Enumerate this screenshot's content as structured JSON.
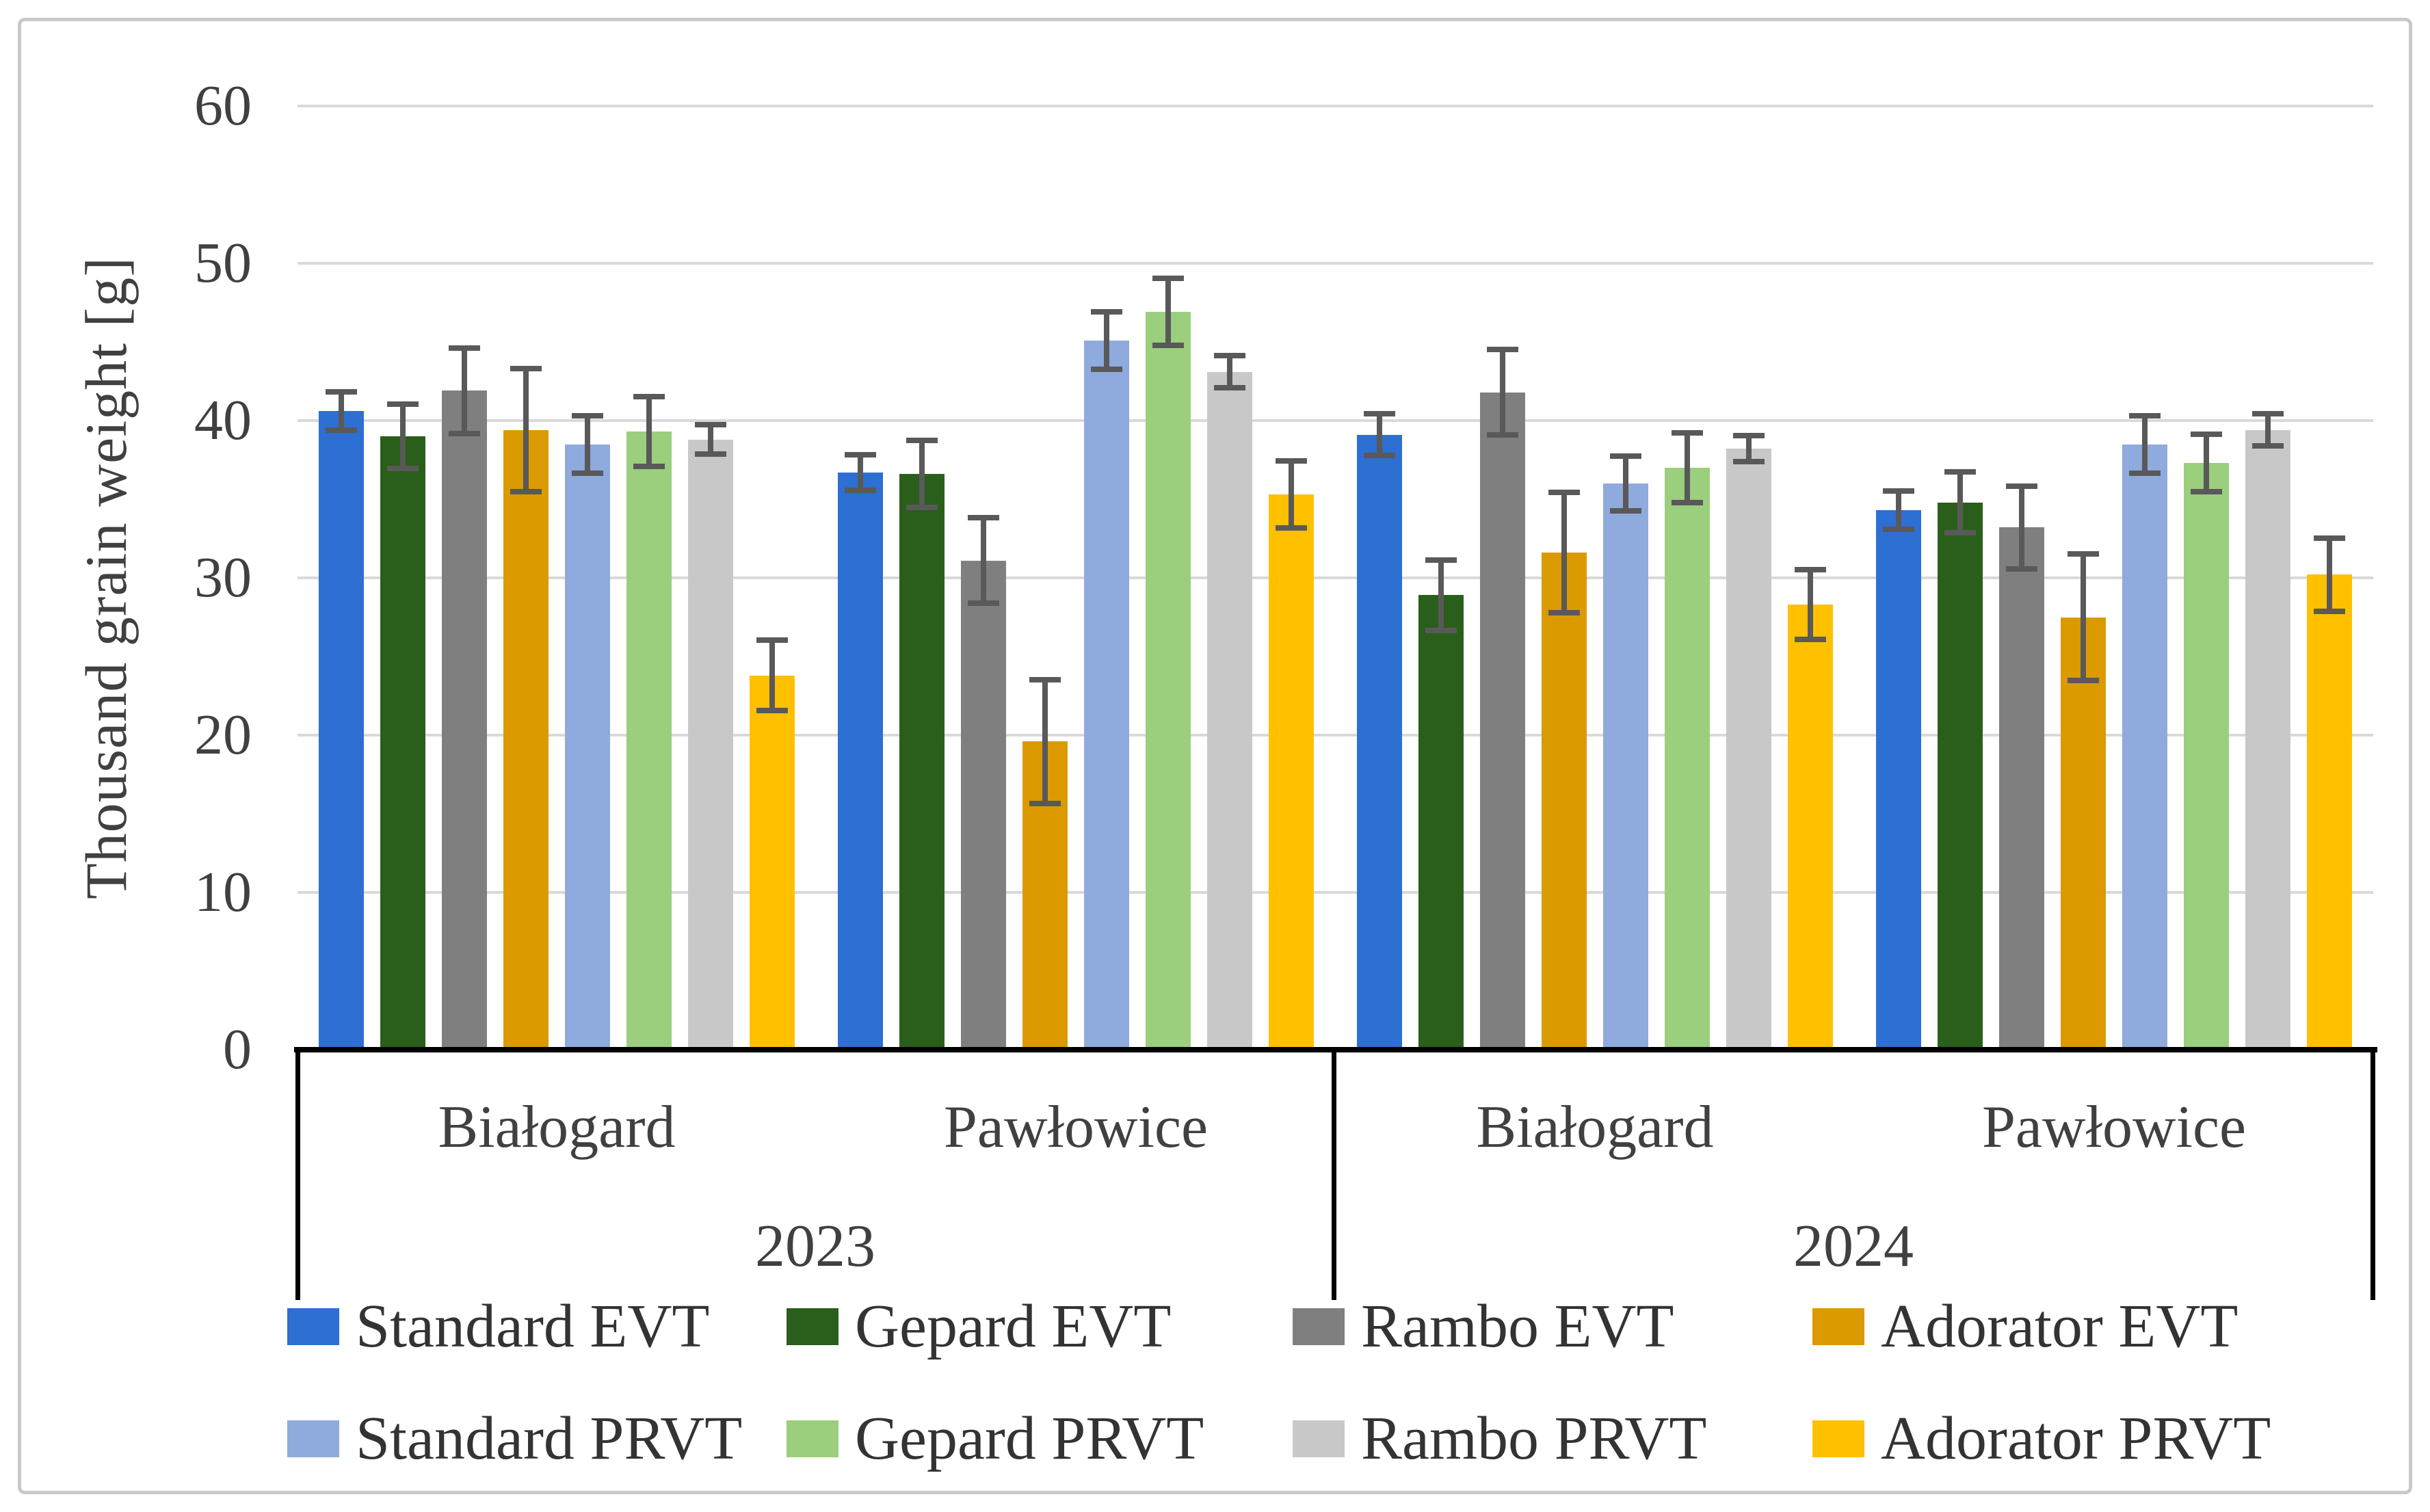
{
  "figure": {
    "background_color": "#ffffff",
    "border_color": "#c9c9c9",
    "text_color": "#404040",
    "gridline_color": "#d9d9d9"
  },
  "chart_data": {
    "type": "bar",
    "title": "",
    "ylabel": "Thousand grain weight [g]",
    "xlabel": "",
    "ylim": [
      0,
      60
    ],
    "yticks": [
      0,
      10,
      20,
      30,
      40,
      50,
      60
    ],
    "grid": true,
    "legend_position": "bottom, two rows",
    "error_bars": true,
    "error_bar_color": "#595959",
    "categories": [
      {
        "location": "Białogard",
        "year": "2023"
      },
      {
        "location": "Pawłowice",
        "year": "2023"
      },
      {
        "location": "Białogard",
        "year": "2024"
      },
      {
        "location": "Pawłowice",
        "year": "2024"
      }
    ],
    "year_groups": [
      "2023",
      "2024"
    ],
    "series": [
      {
        "name": "Standard EVT",
        "color": "#2d6fd2",
        "values": [
          40.6,
          36.7,
          39.1,
          34.3
        ],
        "errors": [
          1.4,
          1.3,
          1.5,
          1.4
        ]
      },
      {
        "name": "Gepard EVT",
        "color": "#2a5e1b",
        "values": [
          39.0,
          36.6,
          28.9,
          34.8
        ],
        "errors": [
          2.2,
          2.3,
          2.4,
          2.1
        ]
      },
      {
        "name": "Rambo EVT",
        "color": "#7f7f7f",
        "values": [
          41.9,
          31.1,
          41.8,
          33.2
        ],
        "errors": [
          2.9,
          2.9,
          2.9,
          2.8
        ]
      },
      {
        "name": "Adorator EVT",
        "color": "#da9a00",
        "values": [
          39.4,
          19.6,
          31.6,
          27.5
        ],
        "errors": [
          4.1,
          4.1,
          4.0,
          4.2
        ]
      },
      {
        "name": "Standard PRVT",
        "color": "#8faadc",
        "values": [
          38.5,
          45.1,
          36.0,
          38.5
        ],
        "errors": [
          2.0,
          2.0,
          1.9,
          2.0
        ]
      },
      {
        "name": "Gepard PRVT",
        "color": "#9bce7d",
        "values": [
          39.3,
          46.9,
          37.0,
          37.3
        ],
        "errors": [
          2.4,
          2.3,
          2.4,
          2.0
        ]
      },
      {
        "name": "Rambo PRVT",
        "color": "#c8c8c8",
        "values": [
          38.8,
          43.1,
          38.2,
          39.4
        ],
        "errors": [
          1.1,
          1.2,
          1.0,
          1.2
        ]
      },
      {
        "name": "Adorator PRVT",
        "color": "#ffc000",
        "values": [
          23.8,
          35.3,
          28.3,
          30.2
        ],
        "errors": [
          2.4,
          2.3,
          2.4,
          2.5
        ]
      }
    ]
  }
}
